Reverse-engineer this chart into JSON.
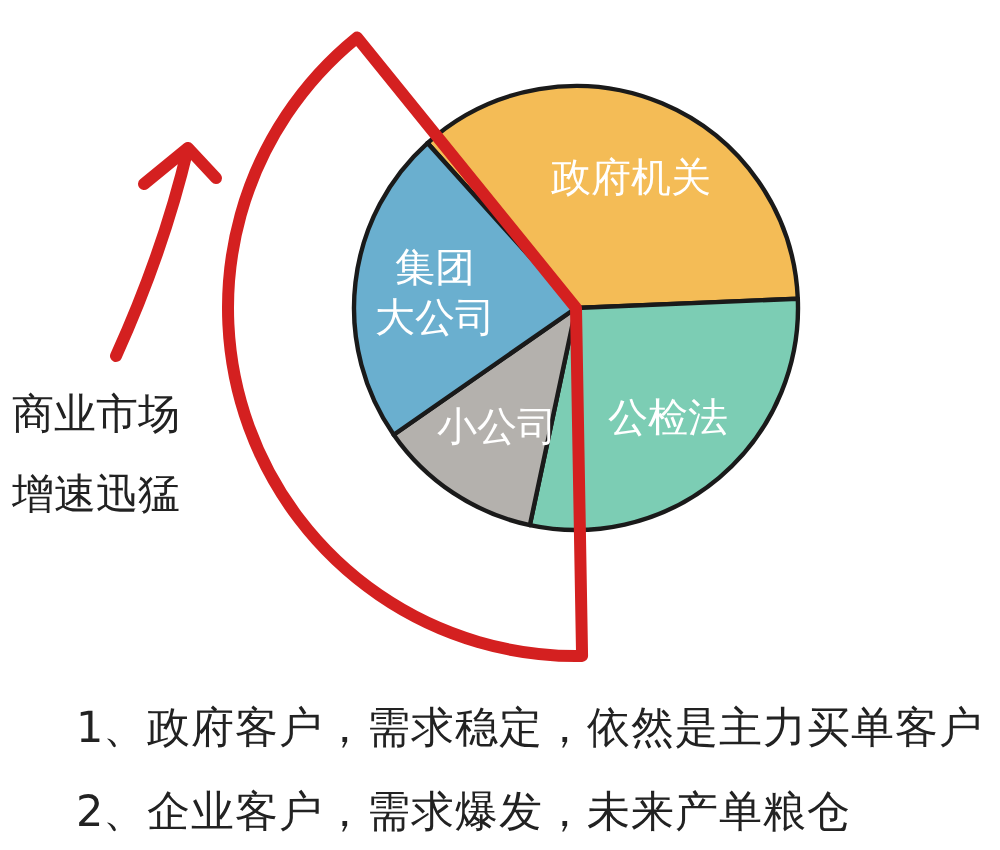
{
  "chart_data": {
    "type": "pie",
    "categories": [
      "政府机关",
      "公检法",
      "小公司",
      "集团大公司"
    ],
    "values": [
      36,
      29,
      12,
      23
    ],
    "colors": [
      "#f4bc56",
      "#7ccdb4",
      "#b4b1ad",
      "#6aafcf"
    ],
    "annotations": [
      "商业市场增速迅猛",
      "1、政府客户，需求稳定，依然是主力买单客户",
      "2、企业客户，需求爆发，未来产单粮仓"
    ]
  }
}
